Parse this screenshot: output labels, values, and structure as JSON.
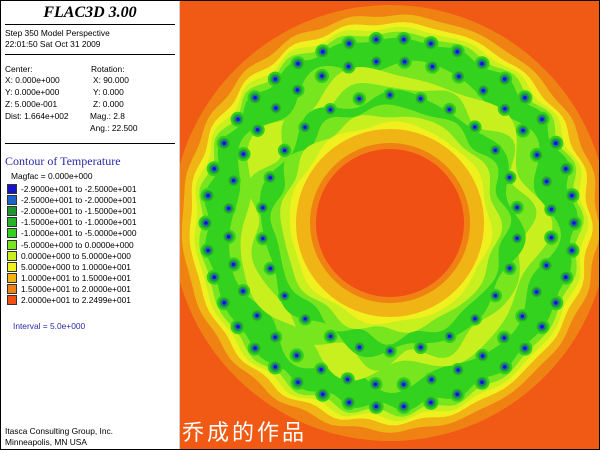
{
  "app": {
    "title": "FLAC3D 3.00"
  },
  "info": {
    "step_line": "Step 350  Model Perspective",
    "timestamp": "22:01:50 Sat Oct 31 2009"
  },
  "view": {
    "center_label": "Center:",
    "center_x": "X: 0.000e+000",
    "center_y": "Y: 0.000e+000",
    "center_z": "Z: 5.000e-001",
    "dist": "Dist: 1.664e+002",
    "rotation_label": "Rotation:",
    "rot_x": "X:  90.000",
    "rot_y": "Y:    0.000",
    "rot_z": "Z:    0.000",
    "mag": "Mag.:      2.8",
    "ang": "Ang.:  22.500"
  },
  "contour": {
    "title": "Contour of Temperature",
    "magfac": "Magfac  =  0.000e+000",
    "legend": [
      {
        "label": "-2.9000e+001 to -2.5000e+001",
        "color": "#1414c8"
      },
      {
        "label": "-2.5000e+001 to -2.0000e+001",
        "color": "#1e64c8"
      },
      {
        "label": "-2.0000e+001 to -1.5000e+001",
        "color": "#1e9632"
      },
      {
        "label": "-1.5000e+001 to -1.0000e+001",
        "color": "#28b428"
      },
      {
        "label": "-1.0000e+001 to -5.0000e+000",
        "color": "#32d21e"
      },
      {
        "label": "-5.0000e+000 to  0.0000e+000",
        "color": "#78e61e"
      },
      {
        "label": " 0.0000e+000 to  5.0000e+000",
        "color": "#c8f01e"
      },
      {
        "label": " 5.0000e+000 to  1.0000e+001",
        "color": "#f0f01e"
      },
      {
        "label": " 1.0000e+001 to  1.5000e+001",
        "color": "#f0b414"
      },
      {
        "label": " 1.5000e+001 to  2.0000e+001",
        "color": "#f08214"
      },
      {
        "label": " 2.0000e+001 to  2.2499e+001",
        "color": "#f05014"
      }
    ],
    "interval": "Interval =  5.0e+000"
  },
  "footer": {
    "company": "Itasca Consulting Group, Inc.",
    "location": "Minneapolis, MN  USA"
  },
  "watermark": "乔成的作品",
  "plot": {
    "background_color": "#f05a14",
    "hole_count_outer": 42,
    "hole_count_middle": 36,
    "hole_count_inner": 26
  }
}
